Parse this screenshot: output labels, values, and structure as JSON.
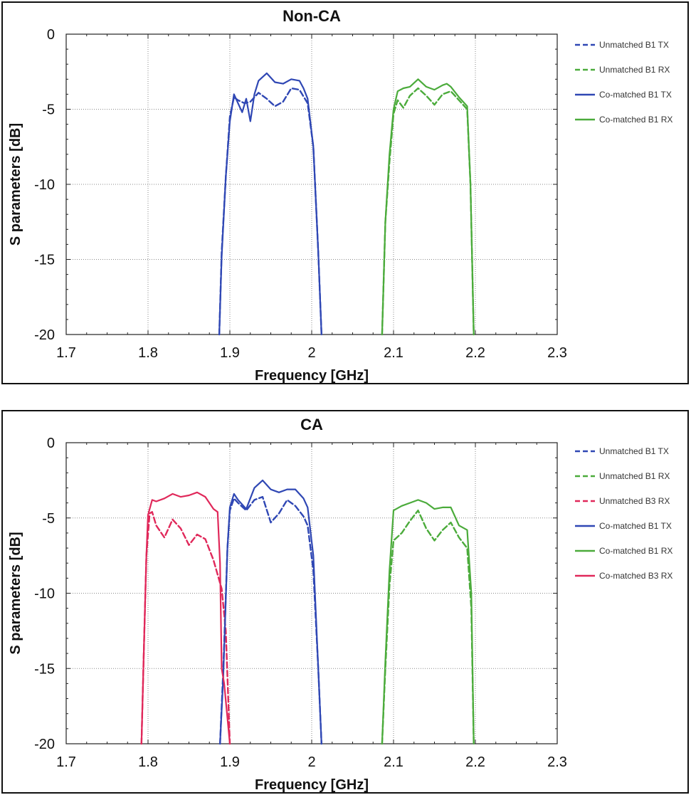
{
  "chart_data": [
    {
      "type": "line",
      "title": "Non-CA",
      "xlabel": "Frequency [GHz]",
      "ylabel": "S parameters [dB]",
      "xlim": [
        1.7,
        2.3
      ],
      "ylim": [
        -20,
        0
      ],
      "xticks": [
        "1.7",
        "1.8",
        "1.9",
        "2",
        "2.1",
        "2.2",
        "2.3"
      ],
      "yticks": [
        "0",
        "-5",
        "-10",
        "-15",
        "-20"
      ],
      "grid": true,
      "legend_position": "right",
      "series": [
        {
          "name": "Unmatched B1 TX",
          "color": "#2f47b4",
          "dash": true,
          "x": [
            1.887,
            1.89,
            1.895,
            1.9,
            1.905,
            1.91,
            1.918,
            1.925,
            1.935,
            1.945,
            1.955,
            1.965,
            1.975,
            1.985,
            1.995,
            2.002,
            2.008,
            2.012
          ],
          "y": [
            -20,
            -14.5,
            -9.5,
            -5.5,
            -4.2,
            -4.4,
            -4.6,
            -4.5,
            -3.9,
            -4.3,
            -4.8,
            -4.5,
            -3.6,
            -3.7,
            -4.6,
            -7.5,
            -14.5,
            -20
          ]
        },
        {
          "name": "Unmatched B1 RX",
          "color": "#4bab3b",
          "dash": true,
          "x": [
            2.086,
            2.09,
            2.095,
            2.1,
            2.105,
            2.112,
            2.12,
            2.13,
            2.14,
            2.15,
            2.16,
            2.17,
            2.18,
            2.19,
            2.194,
            2.198
          ],
          "y": [
            -20,
            -12.5,
            -8.5,
            -5.3,
            -4.4,
            -4.9,
            -4.1,
            -3.6,
            -4.1,
            -4.7,
            -4.0,
            -3.8,
            -4.4,
            -5.0,
            -10,
            -20
          ]
        },
        {
          "name": "Co-matched B1 TX",
          "color": "#2f47b4",
          "dash": false,
          "x": [
            1.887,
            1.89,
            1.895,
            1.9,
            1.905,
            1.91,
            1.915,
            1.92,
            1.925,
            1.93,
            1.935,
            1.945,
            1.955,
            1.965,
            1.975,
            1.985,
            1.99,
            1.995,
            2.002,
            2.008,
            2.012
          ],
          "y": [
            -20,
            -14.8,
            -9.5,
            -5.8,
            -4.0,
            -4.6,
            -5.2,
            -4.3,
            -5.8,
            -4.0,
            -3.1,
            -2.6,
            -3.2,
            -3.3,
            -3.0,
            -3.1,
            -3.6,
            -4.3,
            -7.5,
            -14.5,
            -20
          ]
        },
        {
          "name": "Co-matched B1 RX",
          "color": "#4bab3b",
          "dash": false,
          "x": [
            2.086,
            2.09,
            2.095,
            2.1,
            2.105,
            2.112,
            2.12,
            2.13,
            2.14,
            2.15,
            2.16,
            2.165,
            2.17,
            2.18,
            2.19,
            2.194,
            2.198
          ],
          "y": [
            -20,
            -12.5,
            -8.0,
            -5.0,
            -3.8,
            -3.6,
            -3.5,
            -3.0,
            -3.5,
            -3.7,
            -3.4,
            -3.3,
            -3.5,
            -4.2,
            -4.8,
            -10,
            -20
          ]
        }
      ]
    },
    {
      "type": "line",
      "title": "CA",
      "xlabel": "Frequency [GHz]",
      "ylabel": "S parameters [dB]",
      "xlim": [
        1.7,
        2.3
      ],
      "ylim": [
        -20,
        0
      ],
      "xticks": [
        "1.7",
        "1.8",
        "1.9",
        "2",
        "2.1",
        "2.2",
        "2.3"
      ],
      "yticks": [
        "0",
        "-5",
        "-10",
        "-15",
        "-20"
      ],
      "grid": true,
      "legend_position": "right",
      "series": [
        {
          "name": "Unmatched B1 TX",
          "color": "#2f47b4",
          "dash": true,
          "x": [
            1.888,
            1.892,
            1.897,
            1.9,
            1.905,
            1.91,
            1.92,
            1.93,
            1.94,
            1.95,
            1.96,
            1.97,
            1.98,
            1.99,
            1.995,
            2.002,
            2.008,
            2.012
          ],
          "y": [
            -20,
            -15,
            -7,
            -4.5,
            -3.7,
            -4.0,
            -4.5,
            -3.8,
            -3.6,
            -5.3,
            -4.7,
            -3.8,
            -4.2,
            -4.9,
            -5.5,
            -8.5,
            -15,
            -20
          ]
        },
        {
          "name": "Unmatched B1 RX",
          "color": "#4bab3b",
          "dash": true,
          "x": [
            2.086,
            2.09,
            2.095,
            2.1,
            2.11,
            2.12,
            2.13,
            2.14,
            2.15,
            2.16,
            2.17,
            2.18,
            2.19,
            2.195,
            2.198
          ],
          "y": [
            -20,
            -15,
            -9.5,
            -6.5,
            -6.0,
            -5.2,
            -4.5,
            -5.7,
            -6.5,
            -5.8,
            -5.3,
            -6.3,
            -7.0,
            -11,
            -20
          ]
        },
        {
          "name": "Unmatched B3 RX",
          "color": "#e0285a",
          "dash": true,
          "x": [
            1.792,
            1.795,
            1.798,
            1.802,
            1.805,
            1.81,
            1.82,
            1.83,
            1.84,
            1.85,
            1.86,
            1.87,
            1.88,
            1.89,
            1.895,
            1.9
          ],
          "y": [
            -20,
            -13.5,
            -7.5,
            -4.7,
            -4.6,
            -5.5,
            -6.3,
            -5.1,
            -5.7,
            -6.8,
            -6.1,
            -6.4,
            -7.8,
            -9.7,
            -12.5,
            -20
          ]
        },
        {
          "name": "Co-matched B1 TX",
          "color": "#2f47b4",
          "dash": false,
          "x": [
            1.888,
            1.892,
            1.897,
            1.9,
            1.905,
            1.91,
            1.92,
            1.93,
            1.94,
            1.95,
            1.96,
            1.97,
            1.98,
            1.99,
            1.995,
            2.002,
            2.008,
            2.012
          ],
          "y": [
            -20,
            -15.5,
            -7,
            -4.3,
            -3.4,
            -3.8,
            -4.4,
            -3.0,
            -2.5,
            -3.1,
            -3.3,
            -3.1,
            -3.1,
            -3.7,
            -4.3,
            -7.5,
            -15,
            -20
          ]
        },
        {
          "name": "Co-matched B1 RX",
          "color": "#4bab3b",
          "dash": false,
          "x": [
            2.086,
            2.09,
            2.095,
            2.1,
            2.11,
            2.12,
            2.13,
            2.14,
            2.15,
            2.16,
            2.17,
            2.18,
            2.19,
            2.195,
            2.198
          ],
          "y": [
            -20,
            -14.5,
            -8.5,
            -4.5,
            -4.2,
            -4.0,
            -3.8,
            -4.0,
            -4.4,
            -4.3,
            -4.3,
            -5.5,
            -5.8,
            -10,
            -20
          ]
        },
        {
          "name": "Co-matched B3 RX",
          "color": "#e0285a",
          "dash": false,
          "x": [
            1.792,
            1.795,
            1.798,
            1.8,
            1.805,
            1.81,
            1.82,
            1.83,
            1.84,
            1.85,
            1.86,
            1.87,
            1.88,
            1.885,
            1.888,
            1.89,
            1.893,
            1.9
          ],
          "y": [
            -20,
            -13.5,
            -7.5,
            -4.8,
            -3.8,
            -3.9,
            -3.7,
            -3.4,
            -3.6,
            -3.5,
            -3.3,
            -3.6,
            -4.4,
            -4.6,
            -8,
            -15,
            -16,
            -20
          ]
        }
      ]
    }
  ]
}
